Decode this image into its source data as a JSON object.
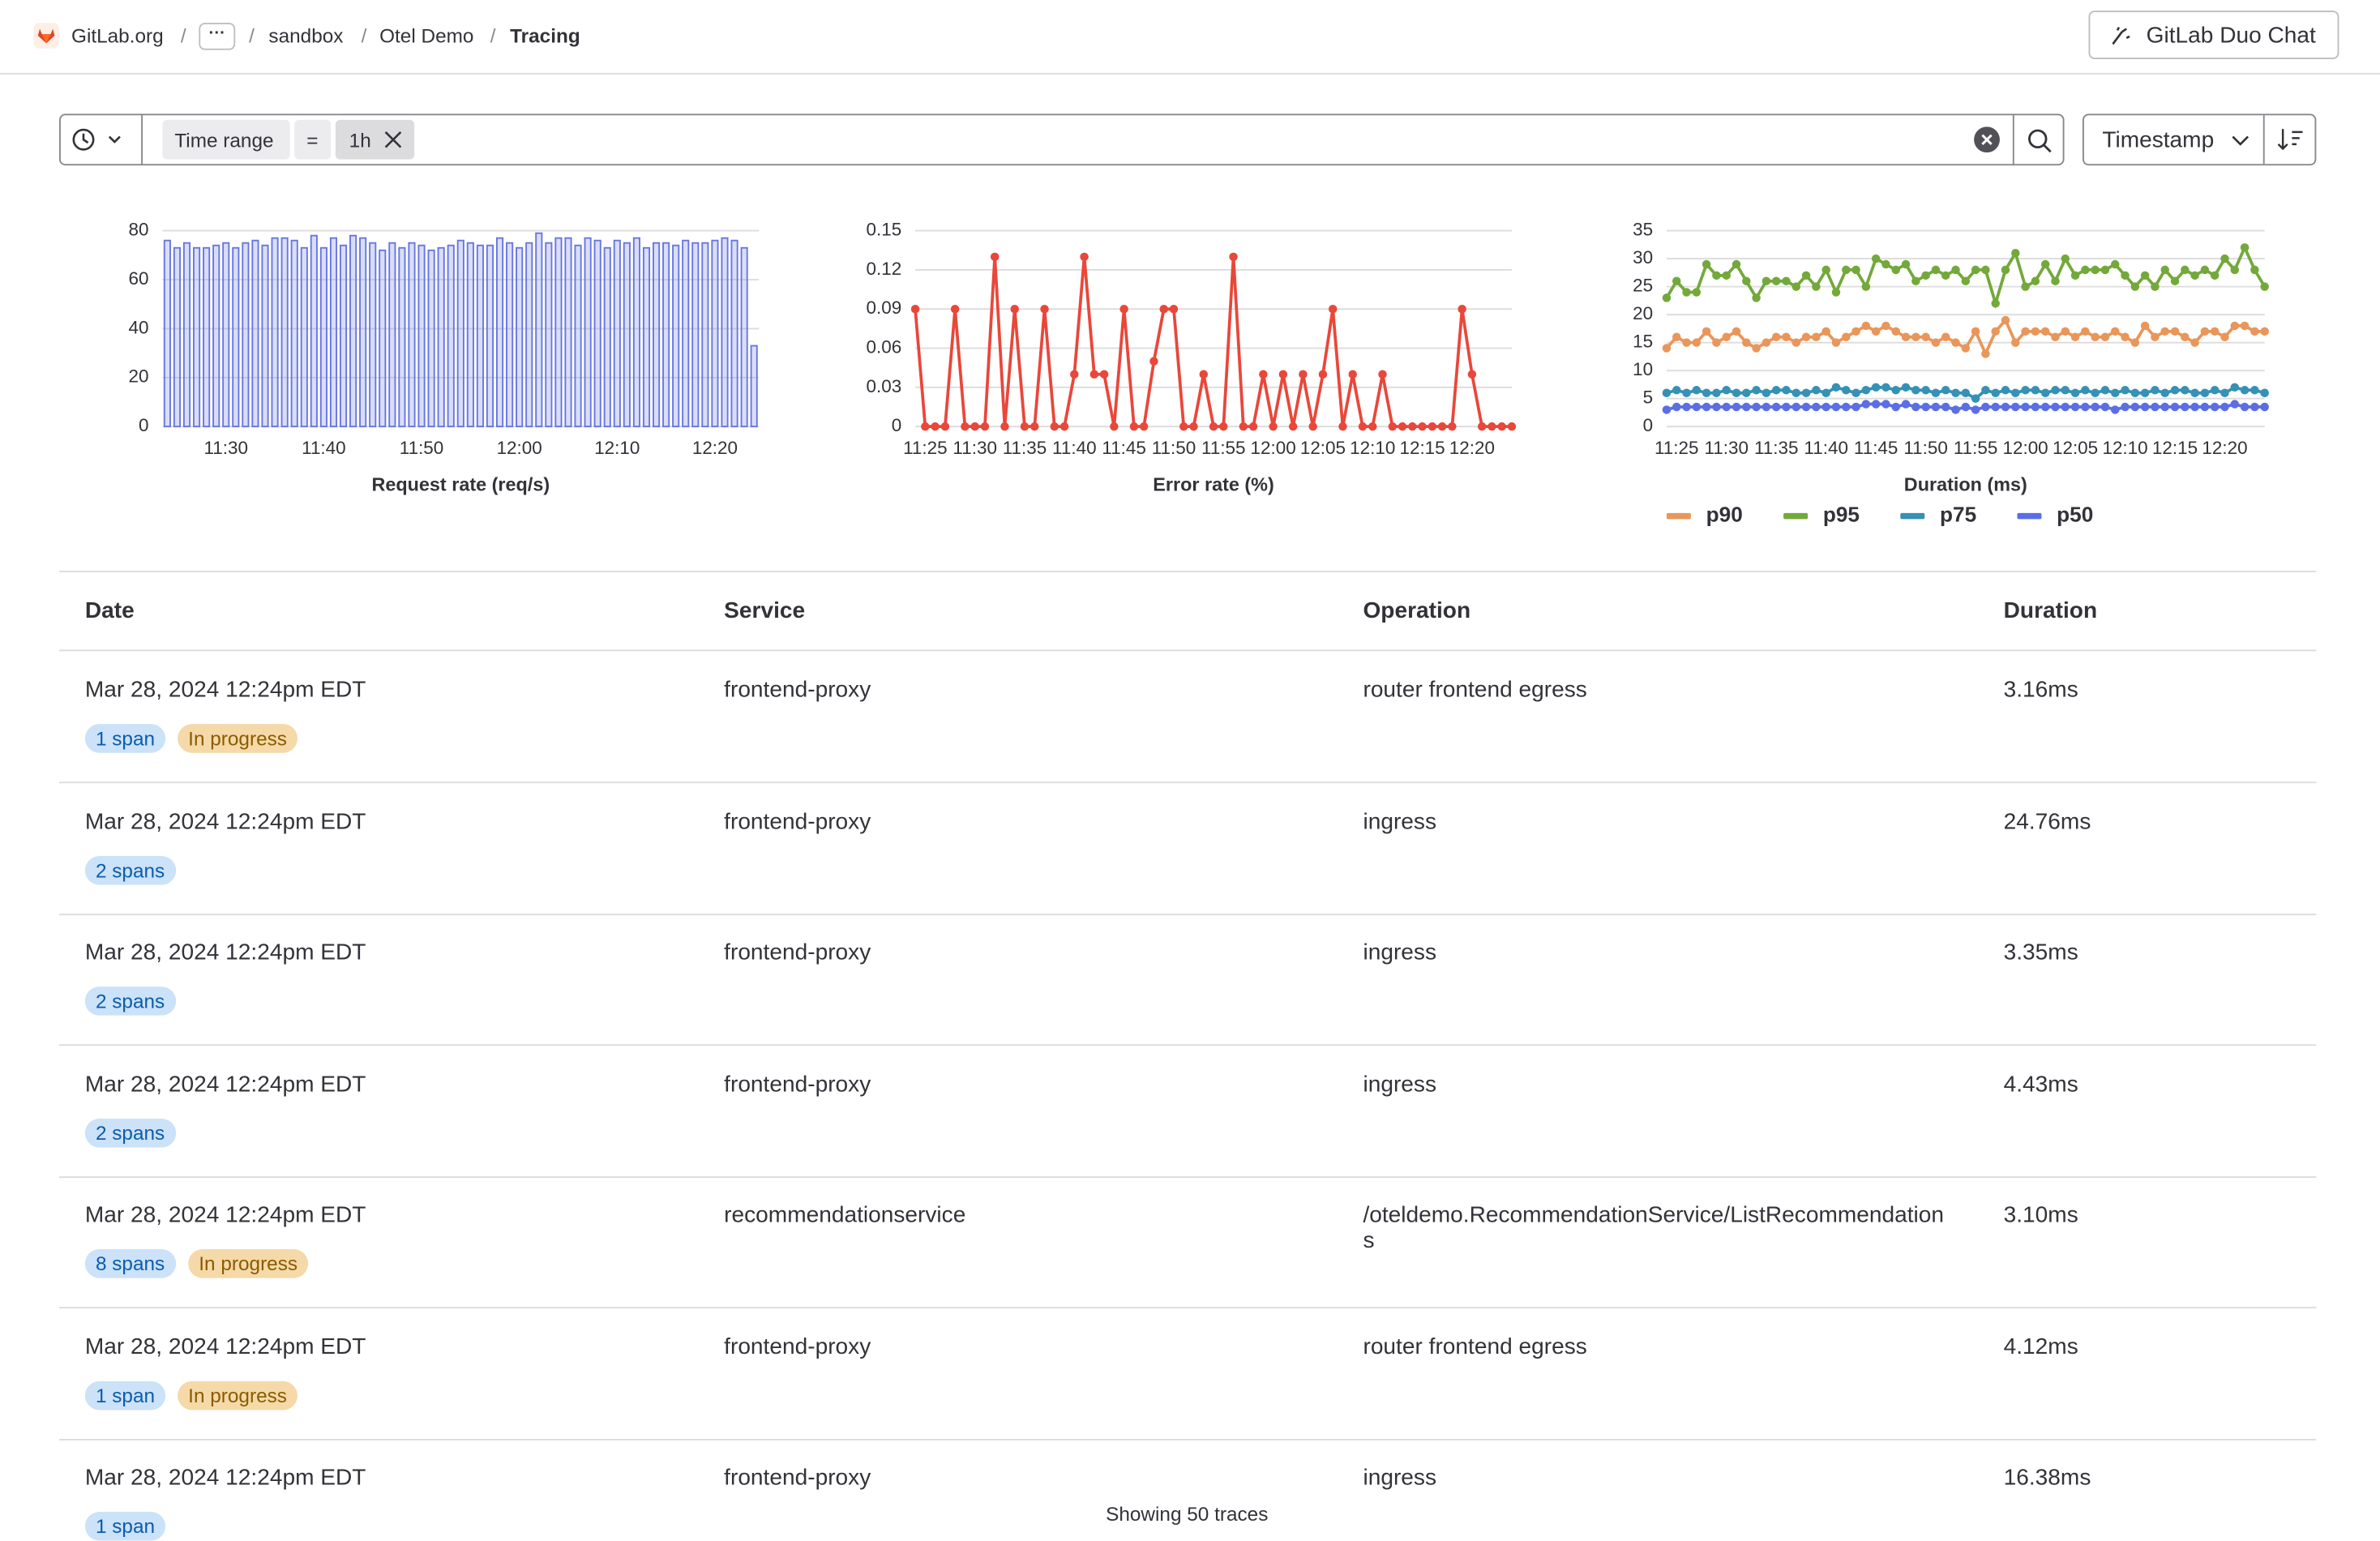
{
  "header": {
    "breadcrumbs": [
      "GitLab.org",
      "sandbox",
      "Otel Demo",
      "Tracing"
    ],
    "chat_button": "GitLab Duo Chat"
  },
  "filter": {
    "token_name": "Time range",
    "token_operator": "=",
    "token_value": "1h",
    "sort": "Timestamp"
  },
  "chart_data": [
    {
      "type": "bar",
      "x_label": "Request rate (req/s)",
      "color": "#6776e0",
      "ylim": [
        0,
        80
      ],
      "yticks": [
        0,
        20,
        40,
        60,
        80
      ],
      "grid": true,
      "categories": [
        null,
        null,
        null,
        null,
        null,
        null,
        "11:30",
        null,
        null,
        null,
        null,
        null,
        null,
        null,
        null,
        null,
        "11:40",
        null,
        null,
        null,
        null,
        null,
        null,
        null,
        null,
        null,
        "11:50",
        null,
        null,
        null,
        null,
        null,
        null,
        null,
        null,
        null,
        "12:00",
        null,
        null,
        null,
        null,
        null,
        null,
        null,
        null,
        null,
        "12:10",
        null,
        null,
        null,
        null,
        null,
        null,
        null,
        null,
        null,
        "12:20",
        null,
        null,
        null,
        null
      ],
      "values": [
        76,
        73,
        75,
        73,
        73,
        74,
        75,
        73,
        75,
        76,
        74,
        77,
        77,
        76,
        73,
        78,
        73,
        77,
        74,
        78,
        77,
        75,
        72,
        75,
        73,
        75,
        74,
        72,
        73,
        74,
        76,
        75,
        74,
        74,
        77,
        75,
        73,
        75,
        79,
        75,
        77,
        77,
        74,
        77,
        76,
        73,
        76,
        75,
        77,
        73,
        75,
        75,
        74,
        76,
        75,
        75,
        76,
        77,
        76,
        73,
        33
      ]
    },
    {
      "type": "line",
      "x_label": "Error rate (%)",
      "color": "#e9473a",
      "ylim": [
        0,
        0.15
      ],
      "yticks": [
        0,
        0.03,
        0.06,
        0.09,
        0.12,
        0.15
      ],
      "grid": true,
      "categories": [
        null,
        "11:25",
        null,
        null,
        null,
        null,
        "11:30",
        null,
        null,
        null,
        null,
        "11:35",
        null,
        null,
        null,
        null,
        "11:40",
        null,
        null,
        null,
        null,
        "11:45",
        null,
        null,
        null,
        null,
        "11:50",
        null,
        null,
        null,
        null,
        "11:55",
        null,
        null,
        null,
        null,
        "12:00",
        null,
        null,
        null,
        null,
        "12:05",
        null,
        null,
        null,
        null,
        "12:10",
        null,
        null,
        null,
        null,
        "12:15",
        null,
        null,
        null,
        null,
        "12:20",
        null,
        null,
        null,
        null
      ],
      "values": [
        0.09,
        0,
        0,
        0,
        0.09,
        0,
        0,
        0,
        0.13,
        0,
        0.09,
        0,
        0,
        0.09,
        0,
        0,
        0.04,
        0.13,
        0.04,
        0.04,
        0,
        0.09,
        0,
        0,
        0.05,
        0.09,
        0.09,
        0,
        0,
        0.04,
        0,
        0,
        0.13,
        0,
        0,
        0.04,
        0,
        0.04,
        0,
        0.04,
        0,
        0.04,
        0.09,
        0,
        0.04,
        0,
        0,
        0.04,
        0,
        0,
        0,
        0,
        0,
        0,
        0,
        0.09,
        0.04,
        0,
        0,
        0,
        0
      ]
    },
    {
      "type": "line",
      "x_label": "Duration (ms)",
      "ylim": [
        0,
        35
      ],
      "yticks": [
        0,
        5,
        10,
        15,
        20,
        25,
        30,
        35
      ],
      "grid": true,
      "categories": [
        null,
        "11:25",
        null,
        null,
        null,
        null,
        "11:30",
        null,
        null,
        null,
        null,
        "11:35",
        null,
        null,
        null,
        null,
        "11:40",
        null,
        null,
        null,
        null,
        "11:45",
        null,
        null,
        null,
        null,
        "11:50",
        null,
        null,
        null,
        null,
        "11:55",
        null,
        null,
        null,
        null,
        "12:00",
        null,
        null,
        null,
        null,
        "12:05",
        null,
        null,
        null,
        null,
        "12:10",
        null,
        null,
        null,
        null,
        "12:15",
        null,
        null,
        null,
        null,
        "12:20",
        null,
        null,
        null,
        null
      ],
      "series": [
        {
          "name": "p90",
          "color": "#e9965a",
          "values": [
            14,
            16,
            15,
            15,
            17,
            15,
            16,
            17,
            15,
            14,
            15,
            16,
            16,
            15,
            16,
            16,
            17,
            15,
            16,
            17,
            18,
            17,
            18,
            17,
            16,
            16,
            16,
            15,
            16,
            15,
            14,
            17,
            13,
            17,
            19,
            15,
            17,
            17,
            17,
            16,
            17,
            16,
            17,
            16,
            16,
            17,
            16,
            15,
            18,
            16,
            17,
            17,
            16,
            15,
            17,
            17,
            16,
            18,
            18,
            17,
            17
          ]
        },
        {
          "name": "p95",
          "color": "#73a93a",
          "values": [
            23,
            26,
            24,
            24,
            29,
            27,
            27,
            29,
            26,
            23,
            26,
            26,
            26,
            25,
            27,
            25,
            28,
            24,
            28,
            28,
            25,
            30,
            29,
            28,
            29,
            26,
            27,
            28,
            27,
            28,
            26,
            28,
            28,
            22,
            28,
            31,
            25,
            26,
            29,
            26,
            30,
            27,
            28,
            28,
            28,
            29,
            27,
            25,
            27,
            25,
            28,
            26,
            28,
            27,
            28,
            27,
            30,
            28,
            32,
            28,
            25
          ]
        },
        {
          "name": "p75",
          "color": "#3591b5",
          "values": [
            6,
            6.5,
            6,
            6.5,
            6,
            6,
            6.5,
            6,
            6,
            6.5,
            6,
            6.5,
            6.5,
            6,
            6,
            6.5,
            6,
            7,
            6.5,
            6,
            6.5,
            7,
            7,
            6.5,
            7,
            6.5,
            6.5,
            6,
            6.5,
            6,
            6,
            5,
            6.5,
            6,
            6.5,
            6,
            6.5,
            6.5,
            6,
            6.5,
            6.5,
            6,
            6.5,
            6,
            6.5,
            6,
            6.5,
            6,
            6,
            6.5,
            6,
            6.5,
            6.5,
            6,
            6,
            6.5,
            6,
            7,
            6.5,
            6.5,
            6
          ]
        },
        {
          "name": "p50",
          "color": "#5b6ee6",
          "values": [
            3,
            3.5,
            3.5,
            3.5,
            3.5,
            3.5,
            3.5,
            3.5,
            3.5,
            3.5,
            3.5,
            3.5,
            3.5,
            3.5,
            3.5,
            3.5,
            3.5,
            3.5,
            3.5,
            3.5,
            4,
            4,
            4,
            3.5,
            4,
            3.5,
            3.5,
            3.5,
            3.5,
            3,
            3.5,
            3,
            3.5,
            3.5,
            3.5,
            3.5,
            3.5,
            3.5,
            3.5,
            3.5,
            3.5,
            3.5,
            3.5,
            3.5,
            3.5,
            3,
            3.5,
            3.5,
            3.5,
            3.5,
            3.5,
            3.5,
            3.5,
            3.5,
            3.5,
            3.5,
            3.5,
            4,
            3.5,
            3.5,
            3.5
          ]
        }
      ]
    }
  ],
  "table": {
    "columns": [
      "Date",
      "Service",
      "Operation",
      "Duration"
    ],
    "rows": [
      {
        "date": "Mar 28, 2024 12:24pm EDT",
        "service": "frontend-proxy",
        "operation": "router frontend egress",
        "duration": "3.16ms",
        "spans": "1 span",
        "status": "In progress"
      },
      {
        "date": "Mar 28, 2024 12:24pm EDT",
        "service": "frontend-proxy",
        "operation": "ingress",
        "duration": "24.76ms",
        "spans": "2 spans"
      },
      {
        "date": "Mar 28, 2024 12:24pm EDT",
        "service": "frontend-proxy",
        "operation": "ingress",
        "duration": "3.35ms",
        "spans": "2 spans"
      },
      {
        "date": "Mar 28, 2024 12:24pm EDT",
        "service": "frontend-proxy",
        "operation": "ingress",
        "duration": "4.43ms",
        "spans": "2 spans"
      },
      {
        "date": "Mar 28, 2024 12:24pm EDT",
        "service": "recommendationservice",
        "operation": "/oteldemo.RecommendationService/ListRecommendations",
        "duration": "3.10ms",
        "spans": "8 spans",
        "status": "In progress"
      },
      {
        "date": "Mar 28, 2024 12:24pm EDT",
        "service": "frontend-proxy",
        "operation": "router frontend egress",
        "duration": "4.12ms",
        "spans": "1 span",
        "status": "In progress"
      },
      {
        "date": "Mar 28, 2024 12:24pm EDT",
        "service": "frontend-proxy",
        "operation": "ingress",
        "duration": "16.38ms",
        "spans": "1 span"
      }
    ],
    "footer": "Showing 50 traces"
  }
}
